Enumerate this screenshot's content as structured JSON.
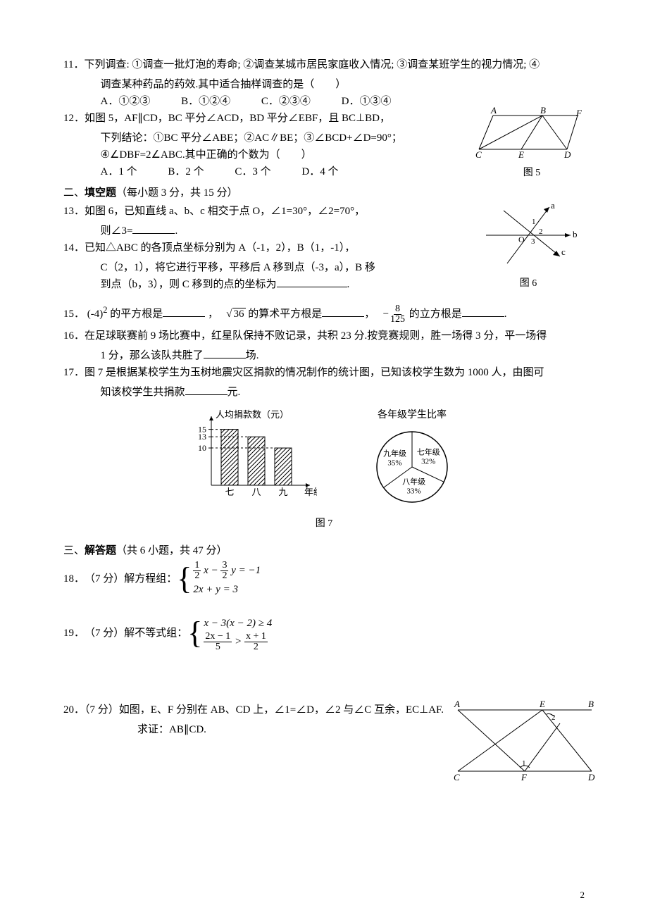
{
  "q11": {
    "num": "11．",
    "text_a": "下列调查: ①调查一批灯泡的寿命; ②调查某城市居民家庭收入情况; ③调查某班学生的视力情况; ④",
    "text_b": "调查某种药品的药效.其中适合抽样调查的是（　　）",
    "opts": {
      "A": "A．①②③",
      "B": "B．①②④",
      "C": "C．②③④",
      "D": "D．①③④"
    }
  },
  "q12": {
    "num": "12．",
    "text_a": "如图 5，AF∥CD，BC 平分∠ACD，BD 平分∠EBF，且 BC⊥BD，",
    "text_b": "下列结论：①BC 平分∠ABE；②AC∥BE；③∠BCD+∠D=90°；",
    "text_c": "④∠DBF=2∠ABC.其中正确的个数为（　　）",
    "opts": {
      "A": "A．1 个",
      "B": "B．2 个",
      "C": "C．3 个",
      "D": "D．4 个"
    },
    "fig": {
      "label": "图 5",
      "points": {
        "A": "A",
        "B": "B",
        "F": "F",
        "C": "C",
        "E": "E",
        "D": "D"
      },
      "coords": {
        "A": [
          30,
          10
        ],
        "B": [
          100,
          10
        ],
        "F": [
          150,
          10
        ],
        "C": [
          10,
          60
        ],
        "E": [
          70,
          60
        ],
        "D": [
          135,
          60
        ]
      },
      "stroke": "#000000"
    }
  },
  "section2": {
    "head": "二、",
    "bold": "填空题",
    "tail": "（每小题 3 分，共 15 分）"
  },
  "q13": {
    "num": "13．",
    "text_a": "如图 6，已知直线 a、b、c 相交于点 O，∠1=30°，∠2=70°，",
    "text_b": "则∠3=",
    "text_c": "."
  },
  "fig6": {
    "label": "图 6",
    "labels": {
      "a": "a",
      "b": "b",
      "c": "c",
      "O": "O",
      "n1": "1",
      "n2": "2",
      "n3": "3"
    },
    "stroke": "#000000"
  },
  "q14": {
    "num": "14．",
    "text_a": "已知△ABC 的各顶点坐标分别为 A（-1，2），B（1，-1），",
    "text_b": "C（2，1），将它进行平移，平移后 A 移到点（-3，a），B 移",
    "text_c": "到点（b，3），则 C 移到的点的坐标为",
    "text_d": "."
  },
  "q15": {
    "num": "15．",
    "parts": {
      "p1a": "(-4)",
      "p1b": "2",
      "p1c": " 的平方根是",
      "comma1": "，",
      "p2a": "36",
      "p2b": " 的算术平方根是",
      "comma2": "，",
      "p3a_num": "8",
      "p3a_den": "125",
      "p3b": " 的立方根是",
      "p3end": "."
    }
  },
  "q16": {
    "num": "16．",
    "text_a": "在足球联赛前 9 场比赛中，红星队保持不败记录，共积 23 分.按竞赛规则，胜一场得 3 分，平一场得",
    "text_b": "1 分，那么该队共胜了",
    "text_c": "场."
  },
  "q17": {
    "num": "17．",
    "text_a": "图 7 是根据某校学生为玉树地震灾区捐款的情况制作的统计图，已知该校学生数为 1000 人，由图可",
    "text_b": "知该校学生共捐款",
    "text_c": "元."
  },
  "fig7": {
    "label": "图 7",
    "bar": {
      "ylabel": "人均捐款数（元）",
      "xlabel": "年级",
      "yticks": [
        10,
        13,
        15
      ],
      "categories": [
        "七",
        "八",
        "九"
      ],
      "values": [
        15,
        13,
        10
      ],
      "ylim": [
        0,
        17
      ],
      "bar_fill": "hatch",
      "axis_color": "#000000",
      "bg": "#ffffff"
    },
    "pie": {
      "title": "各年级学生比率",
      "slices": [
        {
          "label": "七年级",
          "pct": "32%",
          "value": 32
        },
        {
          "label": "八年级",
          "pct": "33%",
          "value": 33
        },
        {
          "label": "九年级",
          "pct": "35%",
          "value": 35
        }
      ],
      "stroke": "#000000",
      "fill": "#ffffff"
    }
  },
  "section3": {
    "head": "三、",
    "bold": "解答题",
    "tail": "（共 6 小题，共 47 分）"
  },
  "q18": {
    "num": "18．",
    "lead": "（7 分）解方程组：",
    "eq": {
      "l1_frac1_num": "1",
      "l1_frac1_den": "2",
      "l1_mid": " x − ",
      "l1_frac2_num": "3",
      "l1_frac2_den": "2",
      "l1_tail": " y = −1",
      "l2": "2x + y = 3"
    }
  },
  "q19": {
    "num": "19．",
    "lead": "（7 分）解不等式组：",
    "eq": {
      "l1": "x − 3(x − 2) ≥ 4",
      "l2_f1_num": "2x − 1",
      "l2_f1_den": "5",
      "l2_mid": " > ",
      "l2_f2_num": "x + 1",
      "l2_f2_den": "2"
    }
  },
  "q20": {
    "num": "20．",
    "text_a": "（7 分）如图，E、F 分别在 AB、CD 上，∠1=∠D，∠2 与∠C 互余，EC⊥AF.",
    "text_b": "求证：AB∥CD.",
    "fig": {
      "points": {
        "A": "A",
        "E": "E",
        "B": "B",
        "C": "C",
        "F": "F",
        "D": "D",
        "n1": "1",
        "n2": "2"
      },
      "stroke": "#000000"
    }
  },
  "page_num": "2"
}
